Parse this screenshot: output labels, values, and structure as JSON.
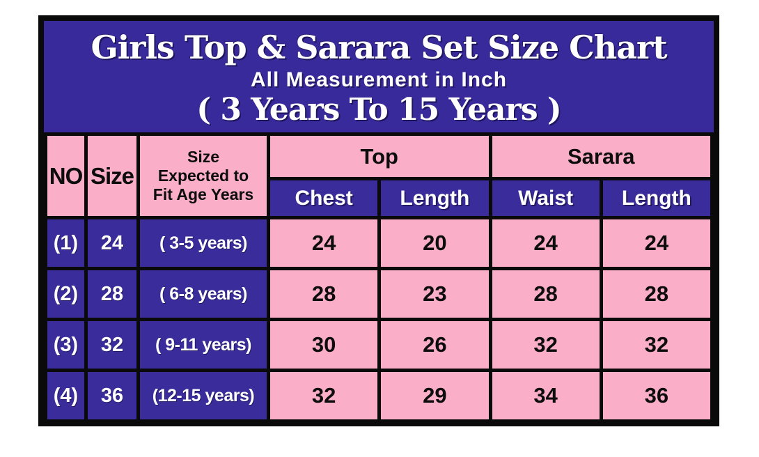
{
  "chart_data": {
    "type": "table",
    "title": "Girls Top & Sarara Set Size Chart",
    "subtitle": "All Measurement in Inch",
    "age_range_note": "( 3 Years To 15 Years )",
    "units": "Inch",
    "column_groups": [
      "Top",
      "Sarara"
    ],
    "headers": {
      "no": "NO",
      "size": "Size",
      "age_line1": "Size",
      "age_line2": "Expected to",
      "age_line3": "Fit Age Years",
      "group_top": "Top",
      "group_sarara": "Sarara",
      "top_chest": "Chest",
      "top_length": "Length",
      "sarara_waist": "Waist",
      "sarara_length": "Length"
    },
    "rows": [
      {
        "no": "(1)",
        "size": "24",
        "age": "( 3-5 years)",
        "top_chest": "24",
        "top_length": "20",
        "sarara_waist": "24",
        "sarara_length": "24"
      },
      {
        "no": "(2)",
        "size": "28",
        "age": "( 6-8 years)",
        "top_chest": "28",
        "top_length": "23",
        "sarara_waist": "28",
        "sarara_length": "28"
      },
      {
        "no": "(3)",
        "size": "32",
        "age": "( 9-11 years)",
        "top_chest": "30",
        "top_length": "26",
        "sarara_waist": "32",
        "sarara_length": "32"
      },
      {
        "no": "(4)",
        "size": "36",
        "age": "(12-15 years)",
        "top_chest": "32",
        "top_length": "29",
        "sarara_waist": "34",
        "sarara_length": "36"
      }
    ]
  },
  "colors": {
    "banner_bg": "#392a9b",
    "cell_indigo": "#3a2d9b",
    "pink": "#fbaec8",
    "border": "#0a0a0a",
    "text_light": "#ffffff",
    "text_dark": "#0d0d0d"
  }
}
